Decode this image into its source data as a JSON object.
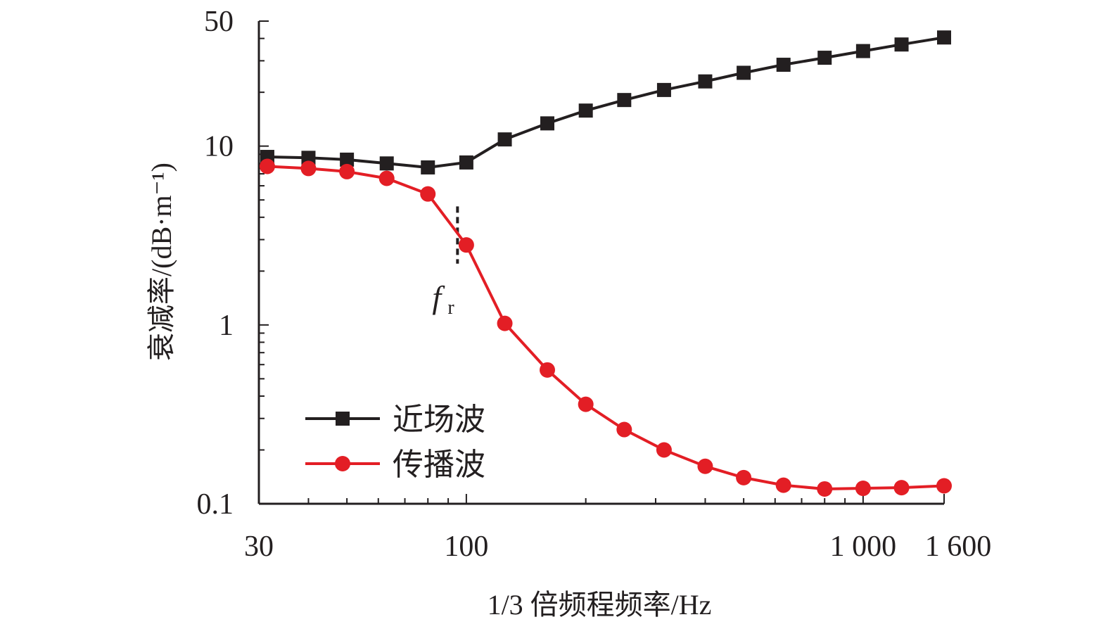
{
  "chart_data": {
    "type": "line",
    "title": "",
    "xlabel": "1/3 倍频程频率/Hz",
    "ylabel": "衰减率/(dB·m⁻¹)",
    "xscale": "log",
    "yscale": "log",
    "xlim": [
      30,
      1600
    ],
    "ylim": [
      0.1,
      50
    ],
    "x_ticks": [
      30,
      100,
      1000,
      1600
    ],
    "x_tick_labels": [
      "30",
      "100",
      "1 000",
      "1 600"
    ],
    "y_ticks": [
      0.1,
      1,
      10,
      50
    ],
    "y_tick_labels": [
      "0.1",
      "1",
      "10",
      "50"
    ],
    "x": [
      31.5,
      40,
      50,
      63,
      80,
      100,
      125,
      160,
      200,
      250,
      315,
      400,
      500,
      630,
      800,
      1000,
      1250,
      1600
    ],
    "series": [
      {
        "name": "近场波",
        "color": "#231f20",
        "marker": "square",
        "values": [
          8.7,
          8.6,
          8.4,
          8.0,
          7.6,
          8.1,
          10.9,
          13.4,
          15.8,
          18.1,
          20.6,
          23.0,
          25.7,
          28.5,
          31.2,
          34.0,
          37.0,
          40.5
        ]
      },
      {
        "name": "传播波",
        "color": "#e31e25",
        "marker": "circle",
        "values": [
          7.7,
          7.5,
          7.2,
          6.6,
          5.4,
          2.8,
          1.02,
          0.56,
          0.36,
          0.26,
          0.2,
          0.162,
          0.14,
          0.127,
          0.121,
          0.122,
          0.123,
          0.126
        ]
      }
    ],
    "annotations": [
      {
        "text": "f",
        "subscript": "r",
        "x": 95,
        "y_range": [
          2.2,
          4.6
        ],
        "style": "dashed-vertical-line"
      }
    ],
    "legend": {
      "position": "bottom-left"
    },
    "grid": false
  }
}
